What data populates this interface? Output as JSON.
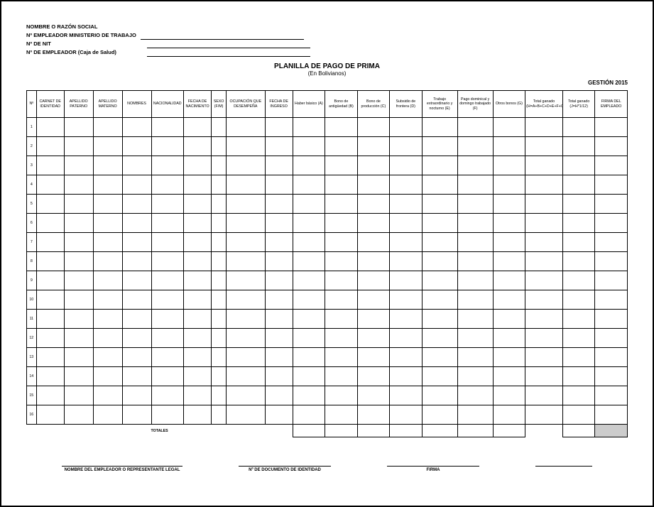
{
  "employer": {
    "label1": "NOMBRE O RAZÓN SOCIAL",
    "label2": "Nº EMPLEADOR MINISTERIO DE TRABAJO",
    "label3": "Nº DE NIT",
    "label4": "Nº DE EMPLEADOR (Caja de Salud)"
  },
  "title": {
    "main": "PLANILLA DE PAGO DE PRIMA",
    "sub": "(En Bolivianos)"
  },
  "gestion": "GESTIÓN 2015",
  "columns": [
    {
      "label": "Nº",
      "width": "1.5%"
    },
    {
      "label": "CARNET DE IDENTIDAD",
      "width": "4.3%"
    },
    {
      "label": "APELLIDO PATERNO",
      "width": "4.5%"
    },
    {
      "label": "APELLIDO MATERNO",
      "width": "4.5%"
    },
    {
      "label": "NOMBRES",
      "width": "4.5%"
    },
    {
      "label": "NACIONALIDAD",
      "width": "5%"
    },
    {
      "label": "FECHA DE NACIMIENTO",
      "width": "4.3%"
    },
    {
      "label": "SEXO (F/M)",
      "width": "2.3%"
    },
    {
      "label": "OCUPACIÓN QUE DESEMPEÑA",
      "width": "6%"
    },
    {
      "label": "FECHA DE INGRESO",
      "width": "4.3%"
    },
    {
      "label": "Haber básico (A)",
      "width": "5%"
    },
    {
      "label": "Bono de antigüedad (B)",
      "width": "5%"
    },
    {
      "label": "Bono de producción (C)",
      "width": "5%"
    },
    {
      "label": "Subsidio de frontera (D)",
      "width": "5%"
    },
    {
      "label": "Trabajo extraordinario y nocturno (E)",
      "width": "5.5%"
    },
    {
      "label": "Pago dominical y domingo trabajado (F)",
      "width": "5.5%"
    },
    {
      "label": "Otros bonos (G)",
      "width": "5%"
    },
    {
      "label": "Total ganado (H=A+B+C+D+E+F+G)",
      "width": "5.8%"
    },
    {
      "label": "Total ganado (J=H*1/12)",
      "width": "5%"
    },
    {
      "label": "FIRMA DEL EMPLEADO",
      "width": "5%"
    }
  ],
  "rowCount": 16,
  "totals_label": "TOTALES",
  "signatures": {
    "sig1": "NOMBRE DEL EMPLEADOR O REPRESENTANTE LEGAL",
    "sig2": "Nº DE DOCUMENTO DE IDENTIDAD",
    "sig3": "FIRMA",
    "sig4": ""
  },
  "colors": {
    "border": "#000000",
    "background": "#ffffff",
    "shaded": "#cccccc"
  }
}
